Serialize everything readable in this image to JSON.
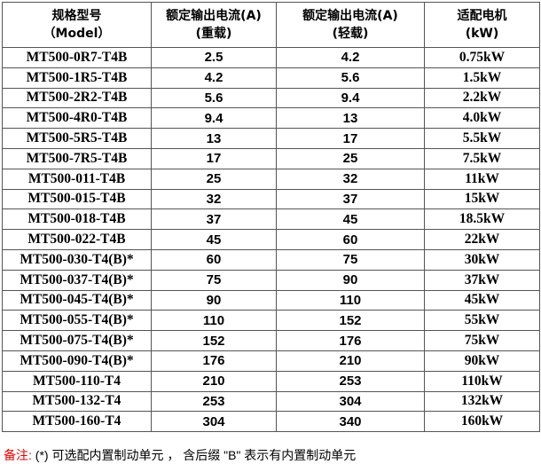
{
  "headers": [
    {
      "l1": "规格型号",
      "l2": "（Model）"
    },
    {
      "l1": "额定输出电流(A)",
      "l2": "(重载)"
    },
    {
      "l1": "额定输出电流(A)",
      "l2": "(轻载)"
    },
    {
      "l1": "适配电机",
      "l2": "(kW)"
    }
  ],
  "rows": [
    [
      "MT500-0R7-T4B",
      "2.5",
      "4.2",
      "0.75kW"
    ],
    [
      "MT500-1R5-T4B",
      "4.2",
      "5.6",
      "1.5kW"
    ],
    [
      "MT500-2R2-T4B",
      "5.6",
      "9.4",
      "2.2kW"
    ],
    [
      "MT500-4R0-T4B",
      "9.4",
      "13",
      "4.0kW"
    ],
    [
      "MT500-5R5-T4B",
      "13",
      "17",
      "5.5kW"
    ],
    [
      "MT500-7R5-T4B",
      "17",
      "25",
      "7.5kW"
    ],
    [
      "MT500-011-T4B",
      "25",
      "32",
      "11kW"
    ],
    [
      "MT500-015-T4B",
      "32",
      "37",
      "15kW"
    ],
    [
      "MT500-018-T4B",
      "37",
      "45",
      "18.5kW"
    ],
    [
      "MT500-022-T4B",
      "45",
      "60",
      "22kW"
    ],
    [
      "MT500-030-T4(B)*",
      "60",
      "75",
      "30kW"
    ],
    [
      "MT500-037-T4(B)*",
      "75",
      "90",
      "37kW"
    ],
    [
      "MT500-045-T4(B)*",
      "90",
      "110",
      "45kW"
    ],
    [
      "MT500-055-T4(B)*",
      "110",
      "152",
      "55kW"
    ],
    [
      "MT500-075-T4(B)*",
      "152",
      "176",
      "75kW"
    ],
    [
      "MT500-090-T4(B)*",
      "176",
      "210",
      "90kW"
    ],
    [
      "MT500-110-T4",
      "210",
      "253",
      "110kW"
    ],
    [
      "MT500-132-T4",
      "253",
      "304",
      "132kW"
    ],
    [
      "MT500-160-T4",
      "304",
      "340",
      "160kW"
    ]
  ],
  "note": {
    "label": "备注:",
    "text": " (*) 可选配内置制动单元 ， 含后缀 \"B\" 表示有内置制动单元",
    "label_color": "#e00000"
  }
}
